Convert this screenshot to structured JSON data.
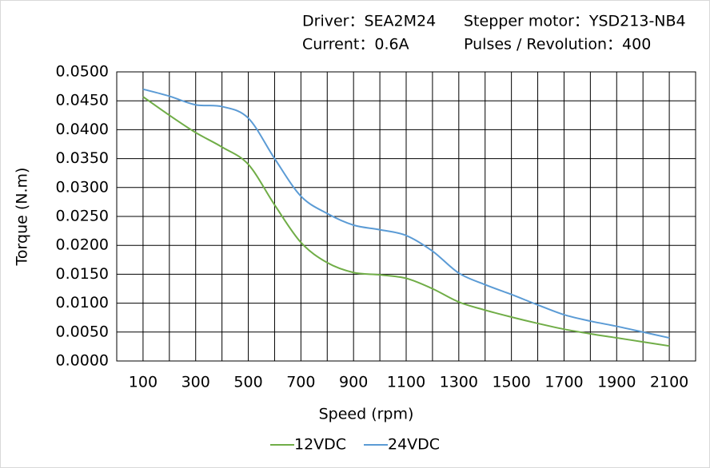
{
  "chart_data": {
    "type": "line",
    "annotations": [
      "Driver：SEA2M24",
      "Stepper motor：YSD213-NB4",
      "Current：0.6A",
      "Pulses / Revolution：400"
    ],
    "y_label": "Torque (N.m)",
    "x_label": "Speed  (rpm)",
    "x": [
      100,
      200,
      300,
      400,
      500,
      600,
      700,
      800,
      900,
      1000,
      1100,
      1200,
      1300,
      1400,
      1500,
      1600,
      1700,
      1800,
      1900,
      2000,
      2100
    ],
    "series": [
      {
        "name": "12VDC",
        "color": "#70ad47",
        "values": [
          0.0457,
          0.0425,
          0.0395,
          0.037,
          0.034,
          0.027,
          0.0205,
          0.017,
          0.0153,
          0.0149,
          0.0143,
          0.0125,
          0.0102,
          0.0088,
          0.0076,
          0.0065,
          0.0055,
          0.0047,
          0.004,
          0.0033,
          0.0026
        ]
      },
      {
        "name": "24VDC",
        "color": "#5b9bd5",
        "values": [
          0.047,
          0.0458,
          0.0443,
          0.044,
          0.042,
          0.035,
          0.0285,
          0.0255,
          0.0235,
          0.0227,
          0.0217,
          0.019,
          0.0152,
          0.0132,
          0.0115,
          0.0097,
          0.008,
          0.0069,
          0.006,
          0.005,
          0.004
        ]
      }
    ],
    "xlim": [
      0,
      2200
    ],
    "xticks": [
      100,
      300,
      500,
      700,
      900,
      1100,
      1300,
      1500,
      1700,
      1900,
      2100
    ],
    "x_minor_ticks": [
      200,
      400,
      600,
      800,
      1000,
      1200,
      1400,
      1600,
      1800,
      2000
    ],
    "ylim": [
      0,
      0.05
    ],
    "yticks": [
      {
        "value": 0,
        "label": "0.0000"
      },
      {
        "value": 0.005,
        "label": "0.0050"
      },
      {
        "value": 0.01,
        "label": "0.0100"
      },
      {
        "value": 0.015,
        "label": "0.0150"
      },
      {
        "value": 0.02,
        "label": "0.0200"
      },
      {
        "value": 0.025,
        "label": "0.0250"
      },
      {
        "value": 0.03,
        "label": "0.0300"
      },
      {
        "value": 0.035,
        "label": "0.0350"
      },
      {
        "value": 0.04,
        "label": "0.0400"
      },
      {
        "value": 0.045,
        "label": "0.0450"
      },
      {
        "value": 0.05,
        "label": "0.0500"
      }
    ],
    "grid": true,
    "legend": "bottom"
  }
}
